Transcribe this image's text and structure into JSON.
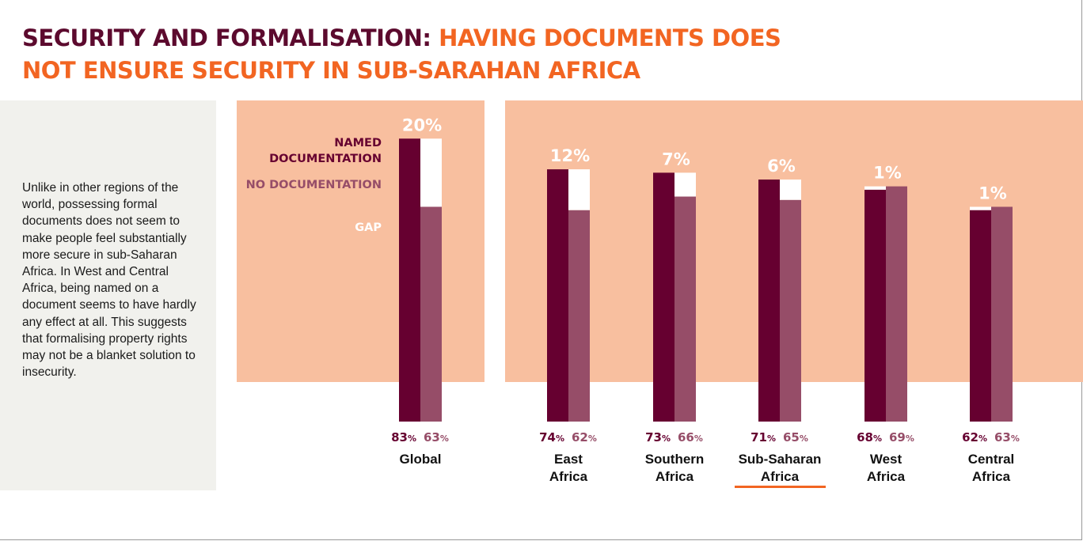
{
  "title": {
    "part1": "SECURITY AND FORMALISATION:",
    "part2": "HAVING DOCUMENTS DOES",
    "line2": "NOT ENSURE SECURITY IN SUB-SARAHAN AFRICA"
  },
  "sidebar": {
    "text": "Unlike in other regions of the world, possessing formal documents does not seem to make people feel substantially more secure in sub-Saharan Africa. In West and Central Africa, being named on a document seems to have hardly any effect at all. This suggests that formalising property rights may not be a blanket solution to insecurity."
  },
  "legend": {
    "named": "NAMED DOCUMENTATION",
    "none": "NO DOCUMENTATION",
    "gap": "GAP"
  },
  "colors": {
    "named": "#660030",
    "none": "#964d68",
    "gap": "#ffffff",
    "panel": "#f8bf9f",
    "accent": "#f26522",
    "title_dark": "#5c0a2e"
  },
  "chart_data": {
    "type": "bar",
    "categories": [
      "Global",
      "East Africa",
      "Southern Africa",
      "Sub-Saharan Africa",
      "West Africa",
      "Central Africa"
    ],
    "category_lines": [
      [
        "Global"
      ],
      [
        "East",
        "Africa"
      ],
      [
        "Southern",
        "Africa"
      ],
      [
        "Sub-Saharan",
        "Africa"
      ],
      [
        "West",
        "Africa"
      ],
      [
        "Central",
        "Africa"
      ]
    ],
    "series": [
      {
        "name": "NAMED DOCUMENTATION",
        "values": [
          83,
          74,
          73,
          71,
          68,
          62
        ]
      },
      {
        "name": "NO DOCUMENTATION",
        "values": [
          63,
          62,
          66,
          65,
          69,
          63
        ]
      }
    ],
    "gap_labels": [
      "20%",
      "12%",
      "7%",
      "6%",
      "1%",
      "1%"
    ],
    "unit": "%",
    "highlighted_category": "Sub-Saharan Africa"
  }
}
